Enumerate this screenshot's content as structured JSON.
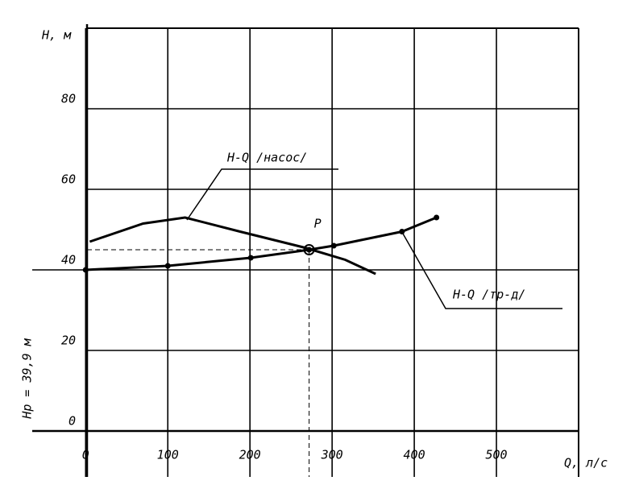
{
  "chart_data": {
    "type": "line",
    "ylabel": "H, м",
    "xlabel": "Q, л/с",
    "xlim": [
      -65,
      600
    ],
    "ylim": [
      0,
      100
    ],
    "xticks": [
      0,
      100,
      200,
      300,
      400,
      500
    ],
    "yticks": [
      0,
      20,
      40,
      60,
      80
    ],
    "grid": true,
    "series": [
      {
        "name": "H-Q /насос/",
        "color": "#000000",
        "marker": false,
        "x": [
          5,
          70,
          121,
          188,
          267,
          316,
          353
        ],
        "values": [
          47,
          51.5,
          53,
          49.5,
          45.5,
          42.5,
          39
        ]
      },
      {
        "name": "H-Q /тр-д/",
        "color": "#000000",
        "marker": true,
        "x": [
          0,
          100,
          201,
          272,
          302,
          385,
          427
        ],
        "values": [
          40,
          41,
          43,
          45,
          46,
          49.5,
          53
        ]
      }
    ],
    "operating_point": {
      "label": "P",
      "x": 272,
      "y": 45
    },
    "annotation": "Hр = 39,9 м"
  }
}
